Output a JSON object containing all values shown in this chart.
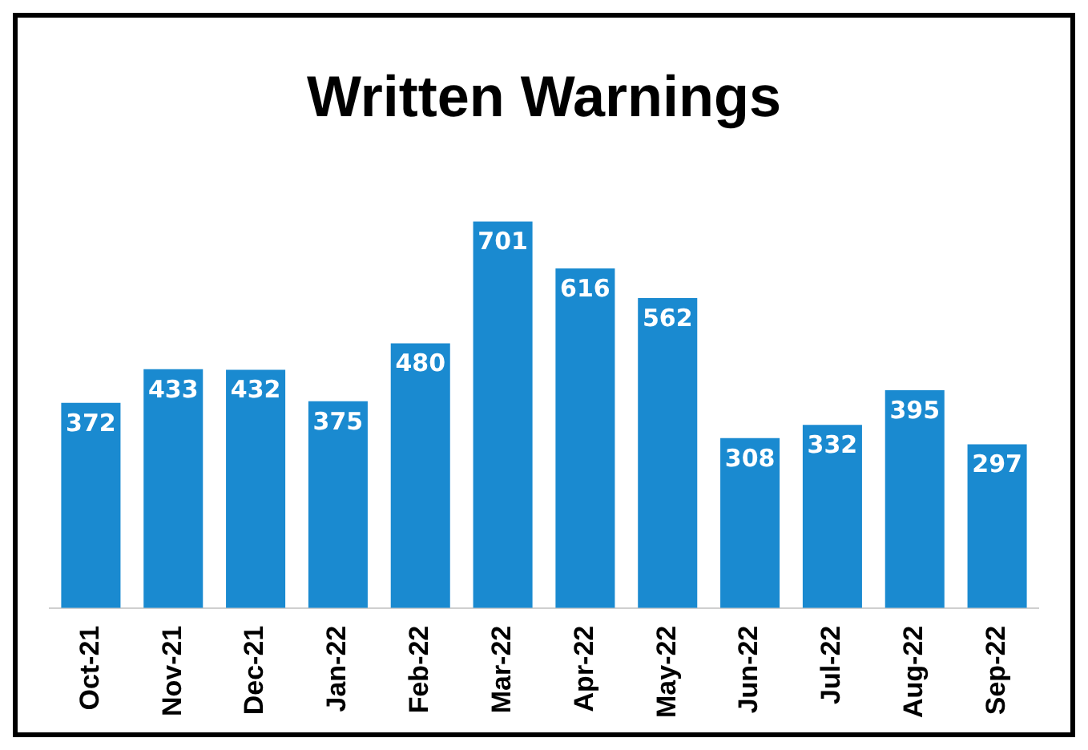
{
  "chart_data": {
    "type": "bar",
    "title": "Written Warnings",
    "categories": [
      "Oct-21",
      "Nov-21",
      "Dec-21",
      "Jan-22",
      "Feb-22",
      "Mar-22",
      "Apr-22",
      "May-22",
      "Jun-22",
      "Jul-22",
      "Aug-22",
      "Sep-22"
    ],
    "values": [
      372,
      433,
      432,
      375,
      480,
      701,
      616,
      562,
      308,
      332,
      395,
      297
    ],
    "color": "#1a8ad0",
    "data_labels": true,
    "tick_labels": "x",
    "grid": false,
    "legend": false
  }
}
